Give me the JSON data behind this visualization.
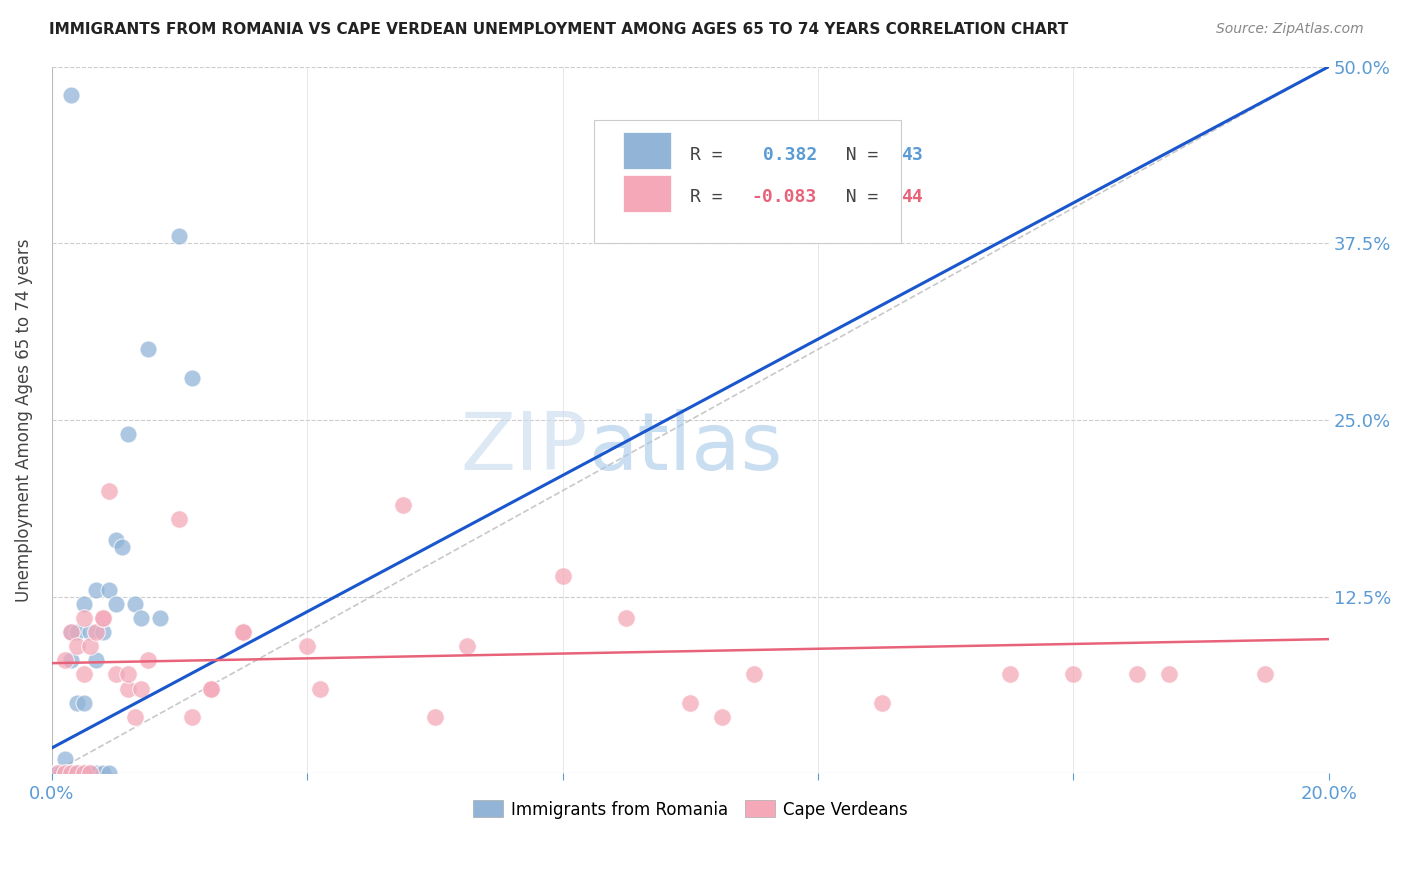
{
  "title": "IMMIGRANTS FROM ROMANIA VS CAPE VERDEAN UNEMPLOYMENT AMONG AGES 65 TO 74 YEARS CORRELATION CHART",
  "source": "Source: ZipAtlas.com",
  "ylabel": "Unemployment Among Ages 65 to 74 years",
  "xlim": [
    0.0,
    0.2
  ],
  "ylim": [
    0.0,
    0.5
  ],
  "yticks": [
    0.0,
    0.125,
    0.25,
    0.375,
    0.5
  ],
  "ytick_labels": [
    "",
    "12.5%",
    "25.0%",
    "37.5%",
    "50.0%"
  ],
  "xtick_positions": [
    0.0,
    0.04,
    0.08,
    0.12,
    0.16,
    0.2
  ],
  "legend_R1": " 0.382",
  "legend_N1": "43",
  "legend_R2": "-0.083",
  "legend_N2": "44",
  "color_romania": "#92B4D7",
  "color_capeverde": "#F4A8B8",
  "color_line_romania": "#1A56CC",
  "color_line_capeverde": "#E8637A",
  "color_diagonal": "#BBBBBB",
  "background_color": "#FFFFFF",
  "romania_x": [
    0.0005,
    0.001,
    0.001,
    0.0015,
    0.002,
    0.002,
    0.002,
    0.002,
    0.0025,
    0.003,
    0.003,
    0.003,
    0.003,
    0.003,
    0.004,
    0.004,
    0.004,
    0.004,
    0.004,
    0.005,
    0.005,
    0.005,
    0.005,
    0.006,
    0.006,
    0.007,
    0.007,
    0.007,
    0.008,
    0.008,
    0.009,
    0.009,
    0.01,
    0.01,
    0.011,
    0.012,
    0.013,
    0.014,
    0.015,
    0.017,
    0.02,
    0.022,
    0.003
  ],
  "romania_y": [
    0.0,
    0.0,
    0.0,
    0.0,
    0.0,
    0.0,
    0.0,
    0.01,
    0.0,
    0.0,
    0.0,
    0.0,
    0.08,
    0.1,
    0.0,
    0.0,
    0.0,
    0.05,
    0.1,
    0.0,
    0.0,
    0.05,
    0.12,
    0.0,
    0.1,
    0.0,
    0.08,
    0.13,
    0.0,
    0.1,
    0.0,
    0.13,
    0.12,
    0.165,
    0.16,
    0.24,
    0.12,
    0.11,
    0.3,
    0.11,
    0.38,
    0.28,
    0.48
  ],
  "capeverde_x": [
    0.001,
    0.002,
    0.002,
    0.003,
    0.003,
    0.004,
    0.004,
    0.005,
    0.005,
    0.005,
    0.006,
    0.006,
    0.007,
    0.008,
    0.008,
    0.009,
    0.01,
    0.012,
    0.012,
    0.013,
    0.014,
    0.015,
    0.02,
    0.022,
    0.025,
    0.025,
    0.03,
    0.03,
    0.04,
    0.042,
    0.055,
    0.06,
    0.065,
    0.08,
    0.09,
    0.1,
    0.105,
    0.11,
    0.13,
    0.15,
    0.16,
    0.17,
    0.175,
    0.19
  ],
  "capeverde_y": [
    0.0,
    0.0,
    0.08,
    0.0,
    0.1,
    0.0,
    0.09,
    0.0,
    0.07,
    0.11,
    0.0,
    0.09,
    0.1,
    0.11,
    0.11,
    0.2,
    0.07,
    0.06,
    0.07,
    0.04,
    0.06,
    0.08,
    0.18,
    0.04,
    0.06,
    0.06,
    0.1,
    0.1,
    0.09,
    0.06,
    0.19,
    0.04,
    0.09,
    0.14,
    0.11,
    0.05,
    0.04,
    0.07,
    0.05,
    0.07,
    0.07,
    0.07,
    0.07,
    0.07
  ],
  "rom_line_x0": 0.0,
  "rom_line_y0": 0.018,
  "rom_line_x1": 0.2,
  "rom_line_y1": 0.5,
  "cv_line_x0": 0.0,
  "cv_line_y0": 0.078,
  "cv_line_x1": 0.2,
  "cv_line_y1": 0.095
}
